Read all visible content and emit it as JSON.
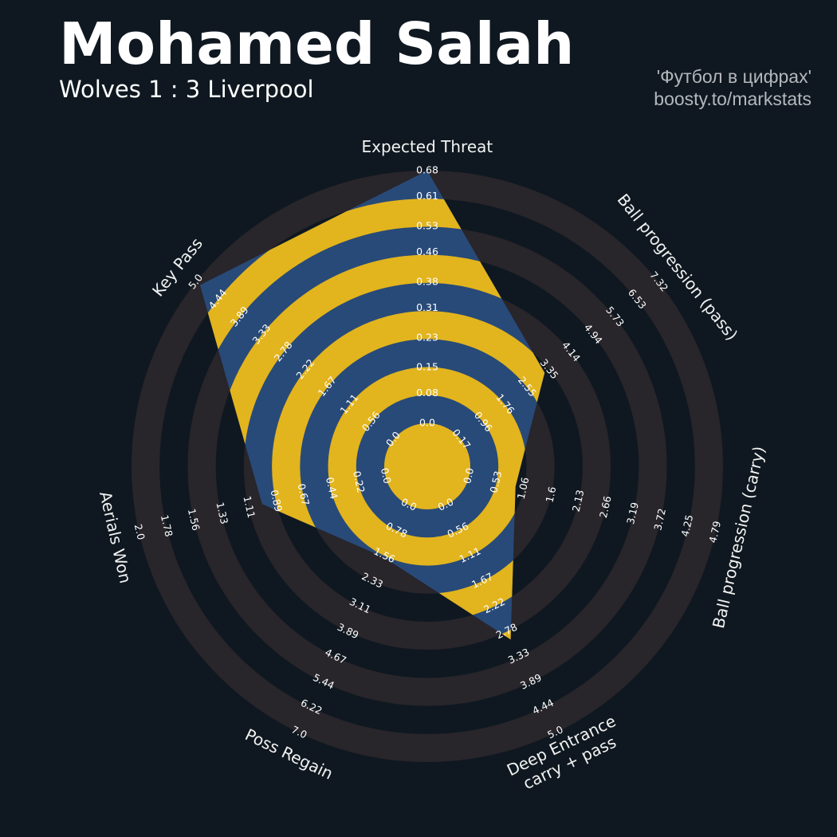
{
  "chart_data": {
    "type": "radar",
    "title": "Mohamed Salah",
    "subtitle": "Wolves 1 : 3 Liverpool",
    "credits": [
      "'Футбол в цифрах'",
      "boosty.to/markstats"
    ],
    "params": [
      "Expected Threat",
      "Ball progression (pass)",
      "Ball progression (carry)",
      "Deep Entrance\ncarry + pass",
      "Poss Regain",
      "Aerials Won",
      "Key Pass"
    ],
    "values": [
      0.68,
      3.2,
      0.9,
      2.95,
      1.6,
      1.0,
      4.9
    ],
    "color": "#284a78",
    "ring_color": "#28252b",
    "highlight_color": "#e2b41e",
    "axes_ticks": [
      [
        {
          "value": 0,
          "label": "0.0"
        },
        0.08,
        0.15,
        0.23,
        0.31,
        0.38,
        0.46,
        0.53,
        0.61,
        0.68
      ],
      [
        0.17,
        0.96,
        1.76,
        2.55,
        3.35,
        4.14,
        4.94,
        5.73,
        6.53,
        7.32
      ],
      [
        {
          "value": 0,
          "label": "0.0"
        },
        0.53,
        1.06,
        1.6,
        2.13,
        2.66,
        3.19,
        3.72,
        4.25,
        4.79
      ],
      [
        {
          "value": 0,
          "label": "0.0"
        },
        0.56,
        1.11,
        1.67,
        2.22,
        2.78,
        3.33,
        3.89,
        4.44,
        {
          "value": 5,
          "label": "5.0"
        }
      ],
      [
        {
          "value": 0,
          "label": "0.0"
        },
        0.78,
        1.56,
        2.33,
        3.11,
        3.89,
        4.67,
        5.44,
        6.22,
        {
          "value": 7,
          "label": "7.0"
        }
      ],
      [
        {
          "value": 0,
          "label": "0.0"
        },
        0.22,
        0.44,
        0.67,
        0.89,
        1.11,
        1.33,
        1.56,
        1.78,
        {
          "value": 2,
          "label": "2.0"
        }
      ],
      [
        {
          "value": 0,
          "label": "0.0"
        },
        0.56,
        1.11,
        1.67,
        2.22,
        2.78,
        3.33,
        3.89,
        4.44,
        {
          "value": 5,
          "label": "5.0"
        }
      ]
    ]
  }
}
